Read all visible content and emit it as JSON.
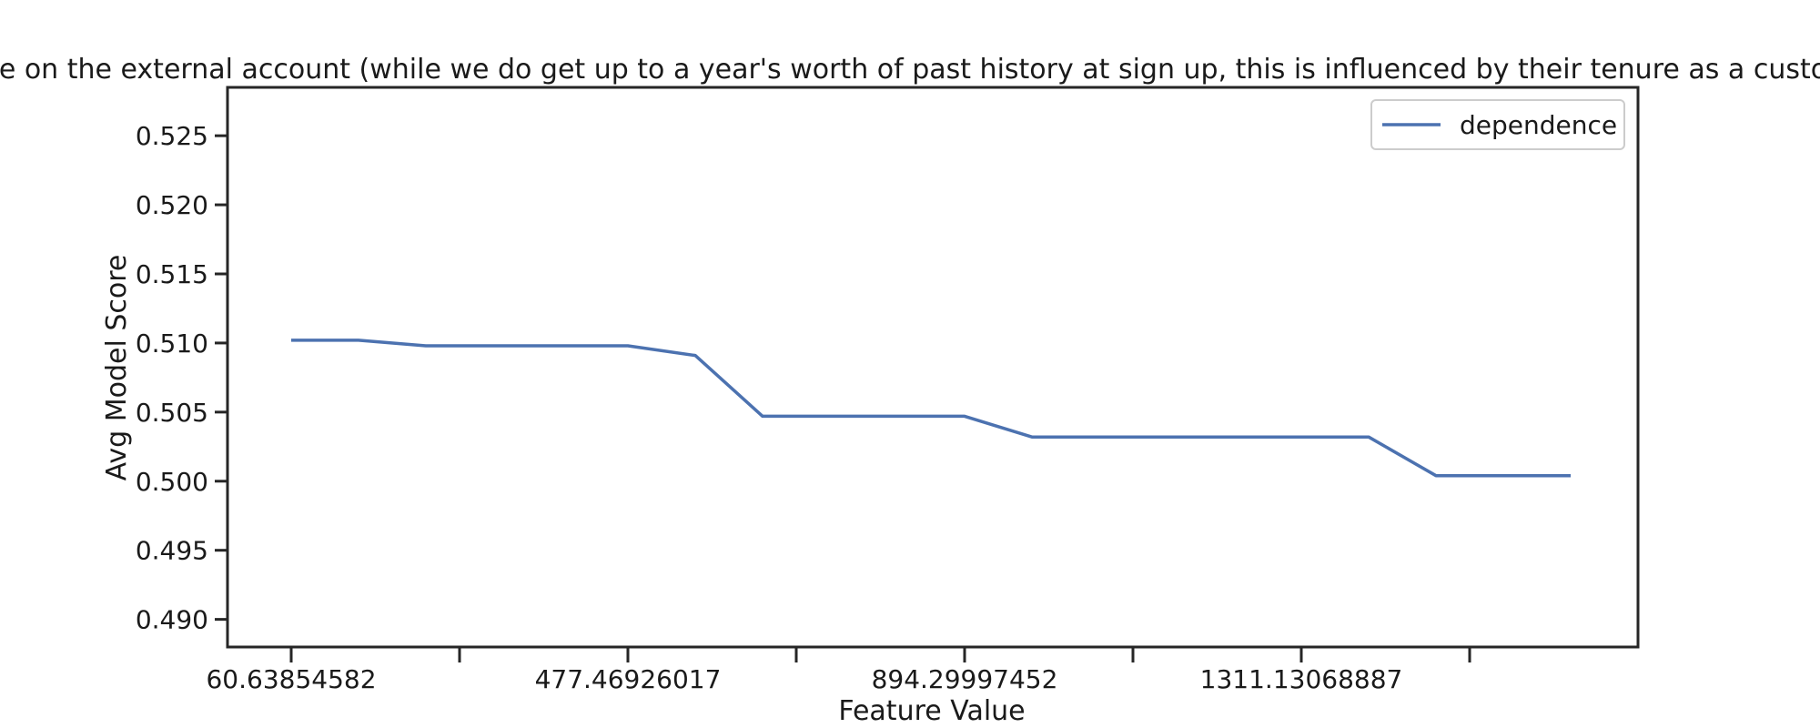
{
  "chart_data": {
    "type": "line",
    "title": "ave on the external account (while we do get up to a year's worth of past history at sign up, this is influenced by their tenure as a custom",
    "xlabel": "Feature Value",
    "ylabel": "Avg Model Score",
    "x_tick_labels": [
      "60.63854582",
      "477.46926017",
      "894.29997452",
      "1311.13068887"
    ],
    "y_tick_labels": [
      "0.490",
      "0.495",
      "0.500",
      "0.505",
      "0.510",
      "0.515",
      "0.520",
      "0.525"
    ],
    "y_ticks": [
      0.49,
      0.495,
      0.5,
      0.505,
      0.51,
      0.515,
      0.52,
      0.525
    ],
    "ylim": [
      0.488,
      0.5285
    ],
    "grid": false,
    "legend_position": "top-right",
    "series": [
      {
        "name": "dependence",
        "color": "#4c72b0",
        "x": [
          60.63854582,
          143.9,
          227.3,
          310.7,
          394.1,
          477.46926017,
          560.8,
          644.2,
          727.6,
          811.0,
          894.29997452,
          977.7,
          1061.0,
          1144.4,
          1227.8,
          1311.13068887,
          1394.5,
          1477.9,
          1561.2,
          1644.6
        ],
        "values": [
          0.5102,
          0.5102,
          0.5098,
          0.5098,
          0.5098,
          0.5098,
          0.5091,
          0.5047,
          0.5047,
          0.5047,
          0.5047,
          0.5032,
          0.5032,
          0.5032,
          0.5032,
          0.5032,
          0.5032,
          0.5004,
          0.5004,
          0.5004
        ]
      }
    ]
  }
}
